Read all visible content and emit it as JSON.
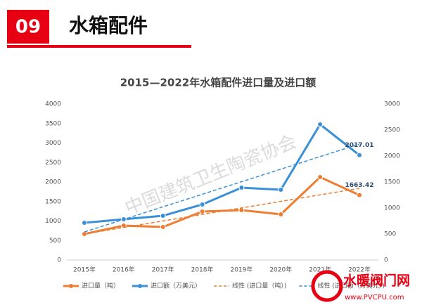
{
  "header": {
    "number": "09",
    "title": "水箱配件"
  },
  "chart_data": {
    "type": "line",
    "title": "2015—2022年水箱配件进口量及进口额",
    "categories": [
      "2015年",
      "2016年",
      "2017年",
      "2018年",
      "2019年",
      "2020年",
      "2021年",
      "2022年"
    ],
    "series": [
      {
        "name": "进口量（吨）",
        "color": "#ed7d31",
        "values": [
          667,
          883,
          847,
          1243,
          1279,
          1171,
          2126,
          1663.42
        ],
        "label_last": true
      },
      {
        "name": "进口额（万美元）",
        "color": "#3a8fd6",
        "axis": "y2",
        "values": [
          716,
          784,
          851,
          1068,
          1392,
          1351,
          2608,
          2017.01
        ],
        "label_last": true
      },
      {
        "name": "线性 (进口量（吨）)",
        "color": "#ed7d31",
        "dashed": true,
        "values": [
          667,
          834,
          1002,
          1169,
          1336,
          1503,
          1671,
          1838
        ]
      },
      {
        "name": "线性 (进口额（万美元）)",
        "color": "#3a8fd6",
        "dashed": true,
        "axis": "y2",
        "values": [
          540,
          781,
          1023,
          1264,
          1506,
          1747,
          1989,
          2230
        ]
      }
    ],
    "ylim": [
      0,
      4000
    ],
    "yticks": [
      0,
      500,
      1000,
      1500,
      2000,
      2500,
      3000,
      3500,
      4000
    ],
    "y2lim": [
      0,
      3000
    ],
    "y2ticks": [
      0,
      500,
      1000,
      1500,
      2000,
      2500,
      3000
    ]
  },
  "watermark": "中国建筑卫生陶瓷协会",
  "logo": {
    "name": "水暖阀门网",
    "url": "www.PVCPU.com"
  }
}
